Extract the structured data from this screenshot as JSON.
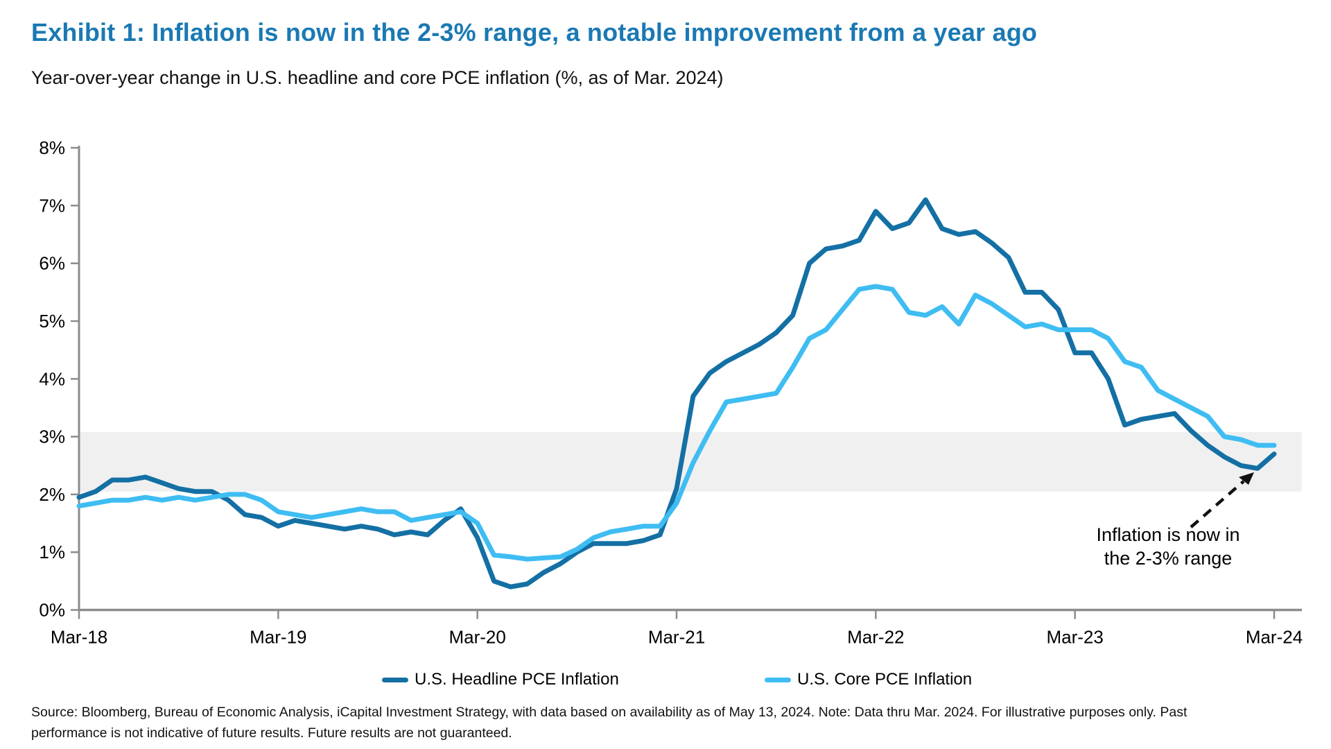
{
  "header": {
    "title": "Exhibit 1: Inflation is now in the 2-3% range, a notable improvement from a year ago",
    "subtitle": "Year-over-year change in U.S. headline and core PCE inflation (%, as of Mar. 2024)"
  },
  "chart_data": {
    "type": "line",
    "title": "Exhibit 1: Inflation is now in the 2-3% range, a notable improvement from a year ago",
    "subtitle": "Year-over-year change in U.S. headline and core PCE inflation (%, as of Mar. 2024)",
    "x_unit": "monthly, Mar-2018 through Mar-2024",
    "x_tick_labels": [
      "Mar-18",
      "Mar-19",
      "Mar-20",
      "Mar-21",
      "Mar-22",
      "Mar-23",
      "Mar-24"
    ],
    "y_tick_labels": [
      "0%",
      "1%",
      "2%",
      "3%",
      "4%",
      "5%",
      "6%",
      "7%",
      "8%"
    ],
    "ylim": [
      0,
      8
    ],
    "grid": "off",
    "legend_position": "bottom",
    "highlight_band": {
      "from": 2.05,
      "to": 3.08,
      "color": "#F0F0F0",
      "meaning": "2-3% range"
    },
    "series": [
      {
        "name": "U.S. Headline PCE Inflation",
        "color": "#1470A4",
        "values": [
          1.95,
          2.05,
          2.25,
          2.25,
          2.3,
          2.2,
          2.1,
          2.05,
          2.05,
          1.9,
          1.65,
          1.6,
          1.45,
          1.55,
          1.5,
          1.45,
          1.4,
          1.45,
          1.4,
          1.3,
          1.35,
          1.3,
          1.55,
          1.75,
          1.25,
          0.5,
          0.4,
          0.45,
          0.65,
          0.8,
          1.0,
          1.15,
          1.15,
          1.15,
          1.2,
          1.3,
          2.1,
          3.7,
          4.1,
          4.3,
          4.45,
          4.6,
          4.8,
          5.1,
          6.0,
          6.25,
          6.3,
          6.4,
          6.9,
          6.6,
          6.7,
          7.1,
          6.6,
          6.5,
          6.55,
          6.35,
          6.1,
          5.5,
          5.5,
          5.2,
          4.45,
          4.45,
          4.0,
          3.2,
          3.3,
          3.35,
          3.4,
          3.1,
          2.85,
          2.65,
          2.5,
          2.45,
          2.7
        ]
      },
      {
        "name": "U.S. Core PCE Inflation",
        "color": "#3FBDF2",
        "values": [
          1.8,
          1.85,
          1.9,
          1.9,
          1.95,
          1.9,
          1.95,
          1.9,
          1.95,
          2.0,
          2.0,
          1.9,
          1.7,
          1.65,
          1.6,
          1.65,
          1.7,
          1.75,
          1.7,
          1.7,
          1.55,
          1.6,
          1.65,
          1.7,
          1.5,
          0.95,
          0.92,
          0.88,
          0.9,
          0.92,
          1.05,
          1.25,
          1.35,
          1.4,
          1.45,
          1.45,
          1.85,
          2.55,
          3.1,
          3.6,
          3.65,
          3.7,
          3.75,
          4.2,
          4.7,
          4.85,
          5.2,
          5.55,
          5.6,
          5.55,
          5.15,
          5.1,
          5.25,
          4.95,
          5.45,
          5.3,
          5.1,
          4.9,
          4.95,
          4.85,
          4.85,
          4.85,
          4.7,
          4.3,
          4.2,
          3.8,
          3.65,
          3.5,
          3.35,
          3.0,
          2.95,
          2.85,
          2.85
        ]
      }
    ],
    "annotation": {
      "line1": "Inflation is now in",
      "line2": "the 2-3% range",
      "arrow": "dashed arrow pointing to headline series near Jan-2024 low"
    }
  },
  "footer": {
    "source_line1": "Source: Bloomberg, Bureau of Economic Analysis, iCapital Investment Strategy, with data based on availability as of May 13, 2024. Note: Data thru Mar. 2024. For illustrative purposes only. Past",
    "source_line2": "performance is not indicative of future results. Future results are not guaranteed."
  },
  "colors": {
    "title_accent": "#1A79B3",
    "headline_line": "#1470A4",
    "core_line": "#3FBDF2",
    "band": "#F0F0F0",
    "axis": "#8C8C8C",
    "text": "#000000"
  }
}
